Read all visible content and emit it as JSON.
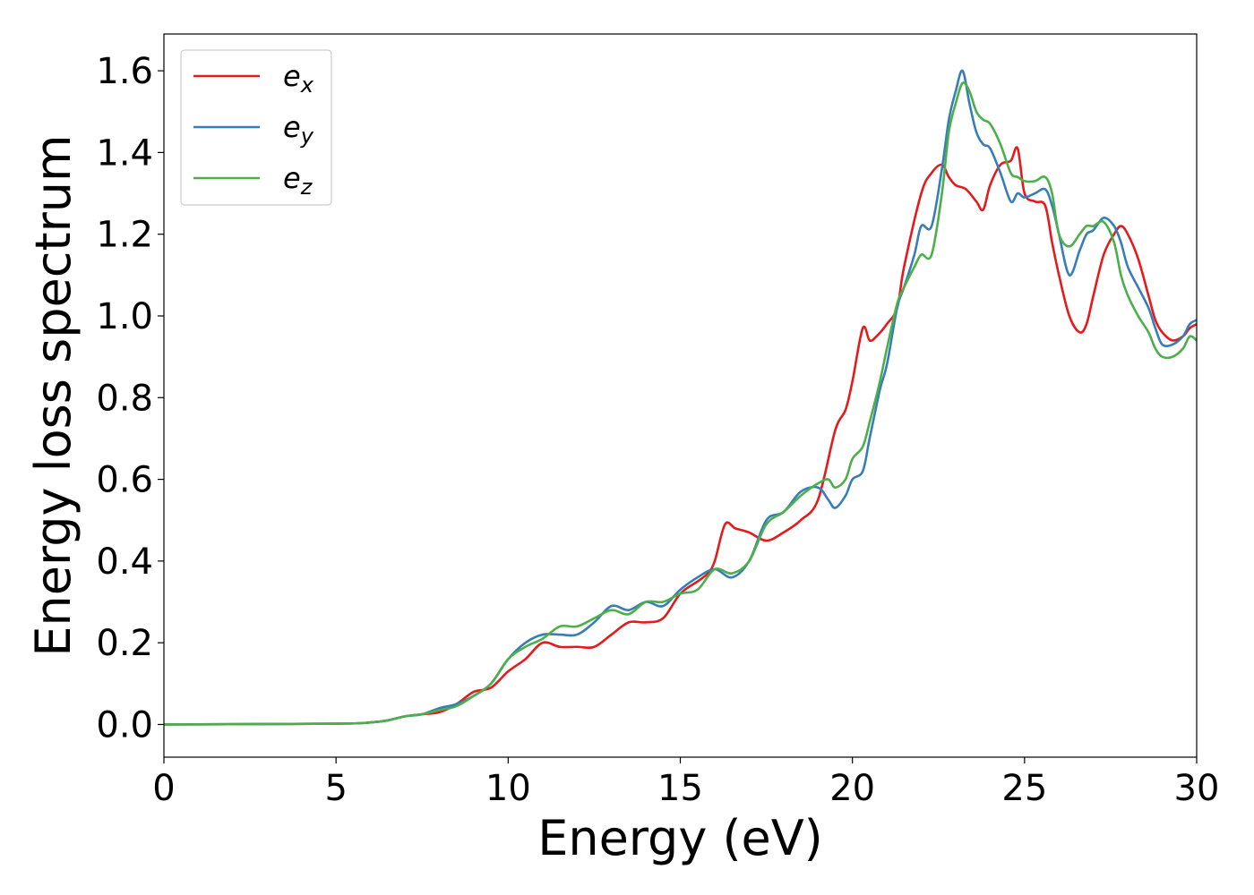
{
  "chart_data": {
    "type": "line",
    "title": "",
    "xlabel": "Energy (eV)",
    "ylabel": "Energy loss spectrum",
    "xlim": [
      0,
      30
    ],
    "ylim": [
      -0.08,
      1.69
    ],
    "xticks": [
      0,
      5,
      10,
      15,
      20,
      25,
      30
    ],
    "xtick_labels": [
      "0",
      "5",
      "10",
      "15",
      "20",
      "25",
      "30"
    ],
    "yticks": [
      0.0,
      0.2,
      0.4,
      0.6,
      0.8,
      1.0,
      1.2,
      1.4,
      1.6
    ],
    "ytick_labels": [
      "0.0",
      "0.2",
      "0.4",
      "0.6",
      "0.8",
      "1.0",
      "1.2",
      "1.4",
      "1.6"
    ],
    "grid": false,
    "legend": {
      "placement": "upper-left",
      "entries": [
        {
          "base": "e",
          "sub": "x",
          "color": "#e41a1c"
        },
        {
          "base": "e",
          "sub": "y",
          "color": "#377eb8"
        },
        {
          "base": "e",
          "sub": "z",
          "color": "#4daf4a"
        }
      ]
    },
    "series": [
      {
        "name": "e_x",
        "color": "#e41a1c",
        "x": [
          0,
          5,
          6,
          6.5,
          7,
          7.5,
          8,
          8.5,
          9,
          9.5,
          10,
          10.5,
          11,
          11.5,
          12,
          12.5,
          13,
          13.5,
          14,
          14.5,
          15,
          15.5,
          15.8,
          16,
          16.3,
          16.6,
          17,
          17.5,
          18,
          18.5,
          19,
          19.5,
          19.8,
          20,
          20.3,
          20.5,
          20.7,
          21,
          21.3,
          21.5,
          22,
          22.3,
          22.6,
          22.8,
          23,
          23.3,
          23.6,
          23.8,
          24,
          24.3,
          24.6,
          24.8,
          25,
          25.3,
          25.6,
          25.8,
          26,
          26.3,
          26.6,
          26.8,
          27,
          27.3,
          27.6,
          27.8,
          28,
          28.3,
          28.6,
          28.8,
          29,
          29.3,
          29.6,
          29.8,
          30
        ],
        "values": [
          0,
          0.002,
          0.005,
          0.01,
          0.02,
          0.025,
          0.03,
          0.05,
          0.08,
          0.09,
          0.13,
          0.16,
          0.2,
          0.19,
          0.19,
          0.19,
          0.22,
          0.25,
          0.25,
          0.26,
          0.32,
          0.35,
          0.37,
          0.4,
          0.49,
          0.48,
          0.47,
          0.45,
          0.47,
          0.5,
          0.55,
          0.72,
          0.77,
          0.84,
          0.97,
          0.94,
          0.95,
          0.98,
          1.02,
          1.12,
          1.3,
          1.35,
          1.37,
          1.34,
          1.32,
          1.31,
          1.28,
          1.26,
          1.32,
          1.37,
          1.38,
          1.41,
          1.3,
          1.28,
          1.27,
          1.18,
          1.1,
          1.0,
          0.96,
          0.98,
          1.05,
          1.15,
          1.2,
          1.22,
          1.2,
          1.14,
          1.05,
          0.99,
          0.96,
          0.94,
          0.95,
          0.97,
          0.98
        ]
      },
      {
        "name": "e_y",
        "color": "#377eb8",
        "x": [
          0,
          5,
          6,
          6.5,
          7,
          7.5,
          8,
          8.5,
          9,
          9.5,
          10,
          10.5,
          11,
          11.5,
          12,
          12.5,
          13,
          13.5,
          14,
          14.5,
          15,
          15.5,
          16,
          16.5,
          17,
          17.5,
          18,
          18.5,
          19,
          19.3,
          19.5,
          19.8,
          20,
          20.3,
          20.5,
          20.8,
          21,
          21.3,
          21.5,
          21.8,
          22,
          22.3,
          22.6,
          22.8,
          23,
          23.2,
          23.4,
          23.6,
          23.8,
          24,
          24.3,
          24.6,
          24.8,
          25,
          25.3,
          25.6,
          25.8,
          26,
          26.3,
          26.6,
          26.8,
          27,
          27.3,
          27.6,
          27.8,
          28,
          28.3,
          28.6,
          28.8,
          29,
          29.3,
          29.6,
          29.8,
          30
        ],
        "values": [
          0,
          0.002,
          0.005,
          0.01,
          0.02,
          0.025,
          0.04,
          0.05,
          0.07,
          0.1,
          0.16,
          0.2,
          0.22,
          0.22,
          0.22,
          0.25,
          0.29,
          0.28,
          0.3,
          0.29,
          0.33,
          0.36,
          0.38,
          0.36,
          0.4,
          0.5,
          0.52,
          0.57,
          0.58,
          0.55,
          0.53,
          0.56,
          0.6,
          0.62,
          0.7,
          0.82,
          0.88,
          1.02,
          1.07,
          1.15,
          1.22,
          1.22,
          1.36,
          1.48,
          1.55,
          1.6,
          1.52,
          1.45,
          1.42,
          1.41,
          1.35,
          1.28,
          1.3,
          1.29,
          1.3,
          1.31,
          1.27,
          1.2,
          1.1,
          1.16,
          1.2,
          1.21,
          1.24,
          1.22,
          1.18,
          1.12,
          1.07,
          1.02,
          0.97,
          0.93,
          0.93,
          0.95,
          0.98,
          0.99
        ]
      },
      {
        "name": "e_z",
        "color": "#4daf4a",
        "x": [
          0,
          5,
          6,
          6.5,
          7,
          7.5,
          8,
          8.5,
          9,
          9.5,
          10,
          10.5,
          11,
          11.5,
          12,
          12.5,
          13,
          13.5,
          14,
          14.5,
          15,
          15.5,
          16,
          16.5,
          17,
          17.5,
          18,
          18.5,
          19,
          19.3,
          19.5,
          19.8,
          20,
          20.3,
          20.5,
          20.8,
          21,
          21.3,
          21.5,
          21.8,
          22,
          22.3,
          22.6,
          22.8,
          23,
          23.2,
          23.4,
          23.6,
          23.8,
          24,
          24.3,
          24.6,
          24.8,
          25,
          25.3,
          25.6,
          25.8,
          26,
          26.3,
          26.6,
          26.8,
          27,
          27.3,
          27.6,
          27.8,
          28,
          28.3,
          28.6,
          28.8,
          29,
          29.3,
          29.6,
          29.8,
          30
        ],
        "values": [
          0,
          0.002,
          0.005,
          0.01,
          0.02,
          0.025,
          0.035,
          0.045,
          0.07,
          0.1,
          0.16,
          0.19,
          0.21,
          0.24,
          0.24,
          0.26,
          0.28,
          0.27,
          0.3,
          0.3,
          0.32,
          0.33,
          0.38,
          0.37,
          0.4,
          0.49,
          0.52,
          0.56,
          0.59,
          0.6,
          0.58,
          0.6,
          0.65,
          0.68,
          0.74,
          0.84,
          0.92,
          1.03,
          1.07,
          1.12,
          1.15,
          1.15,
          1.3,
          1.45,
          1.52,
          1.57,
          1.55,
          1.5,
          1.48,
          1.47,
          1.42,
          1.35,
          1.34,
          1.33,
          1.33,
          1.34,
          1.3,
          1.2,
          1.17,
          1.2,
          1.22,
          1.22,
          1.23,
          1.18,
          1.1,
          1.05,
          1.0,
          0.96,
          0.92,
          0.9,
          0.9,
          0.92,
          0.95,
          0.94
        ]
      }
    ]
  }
}
